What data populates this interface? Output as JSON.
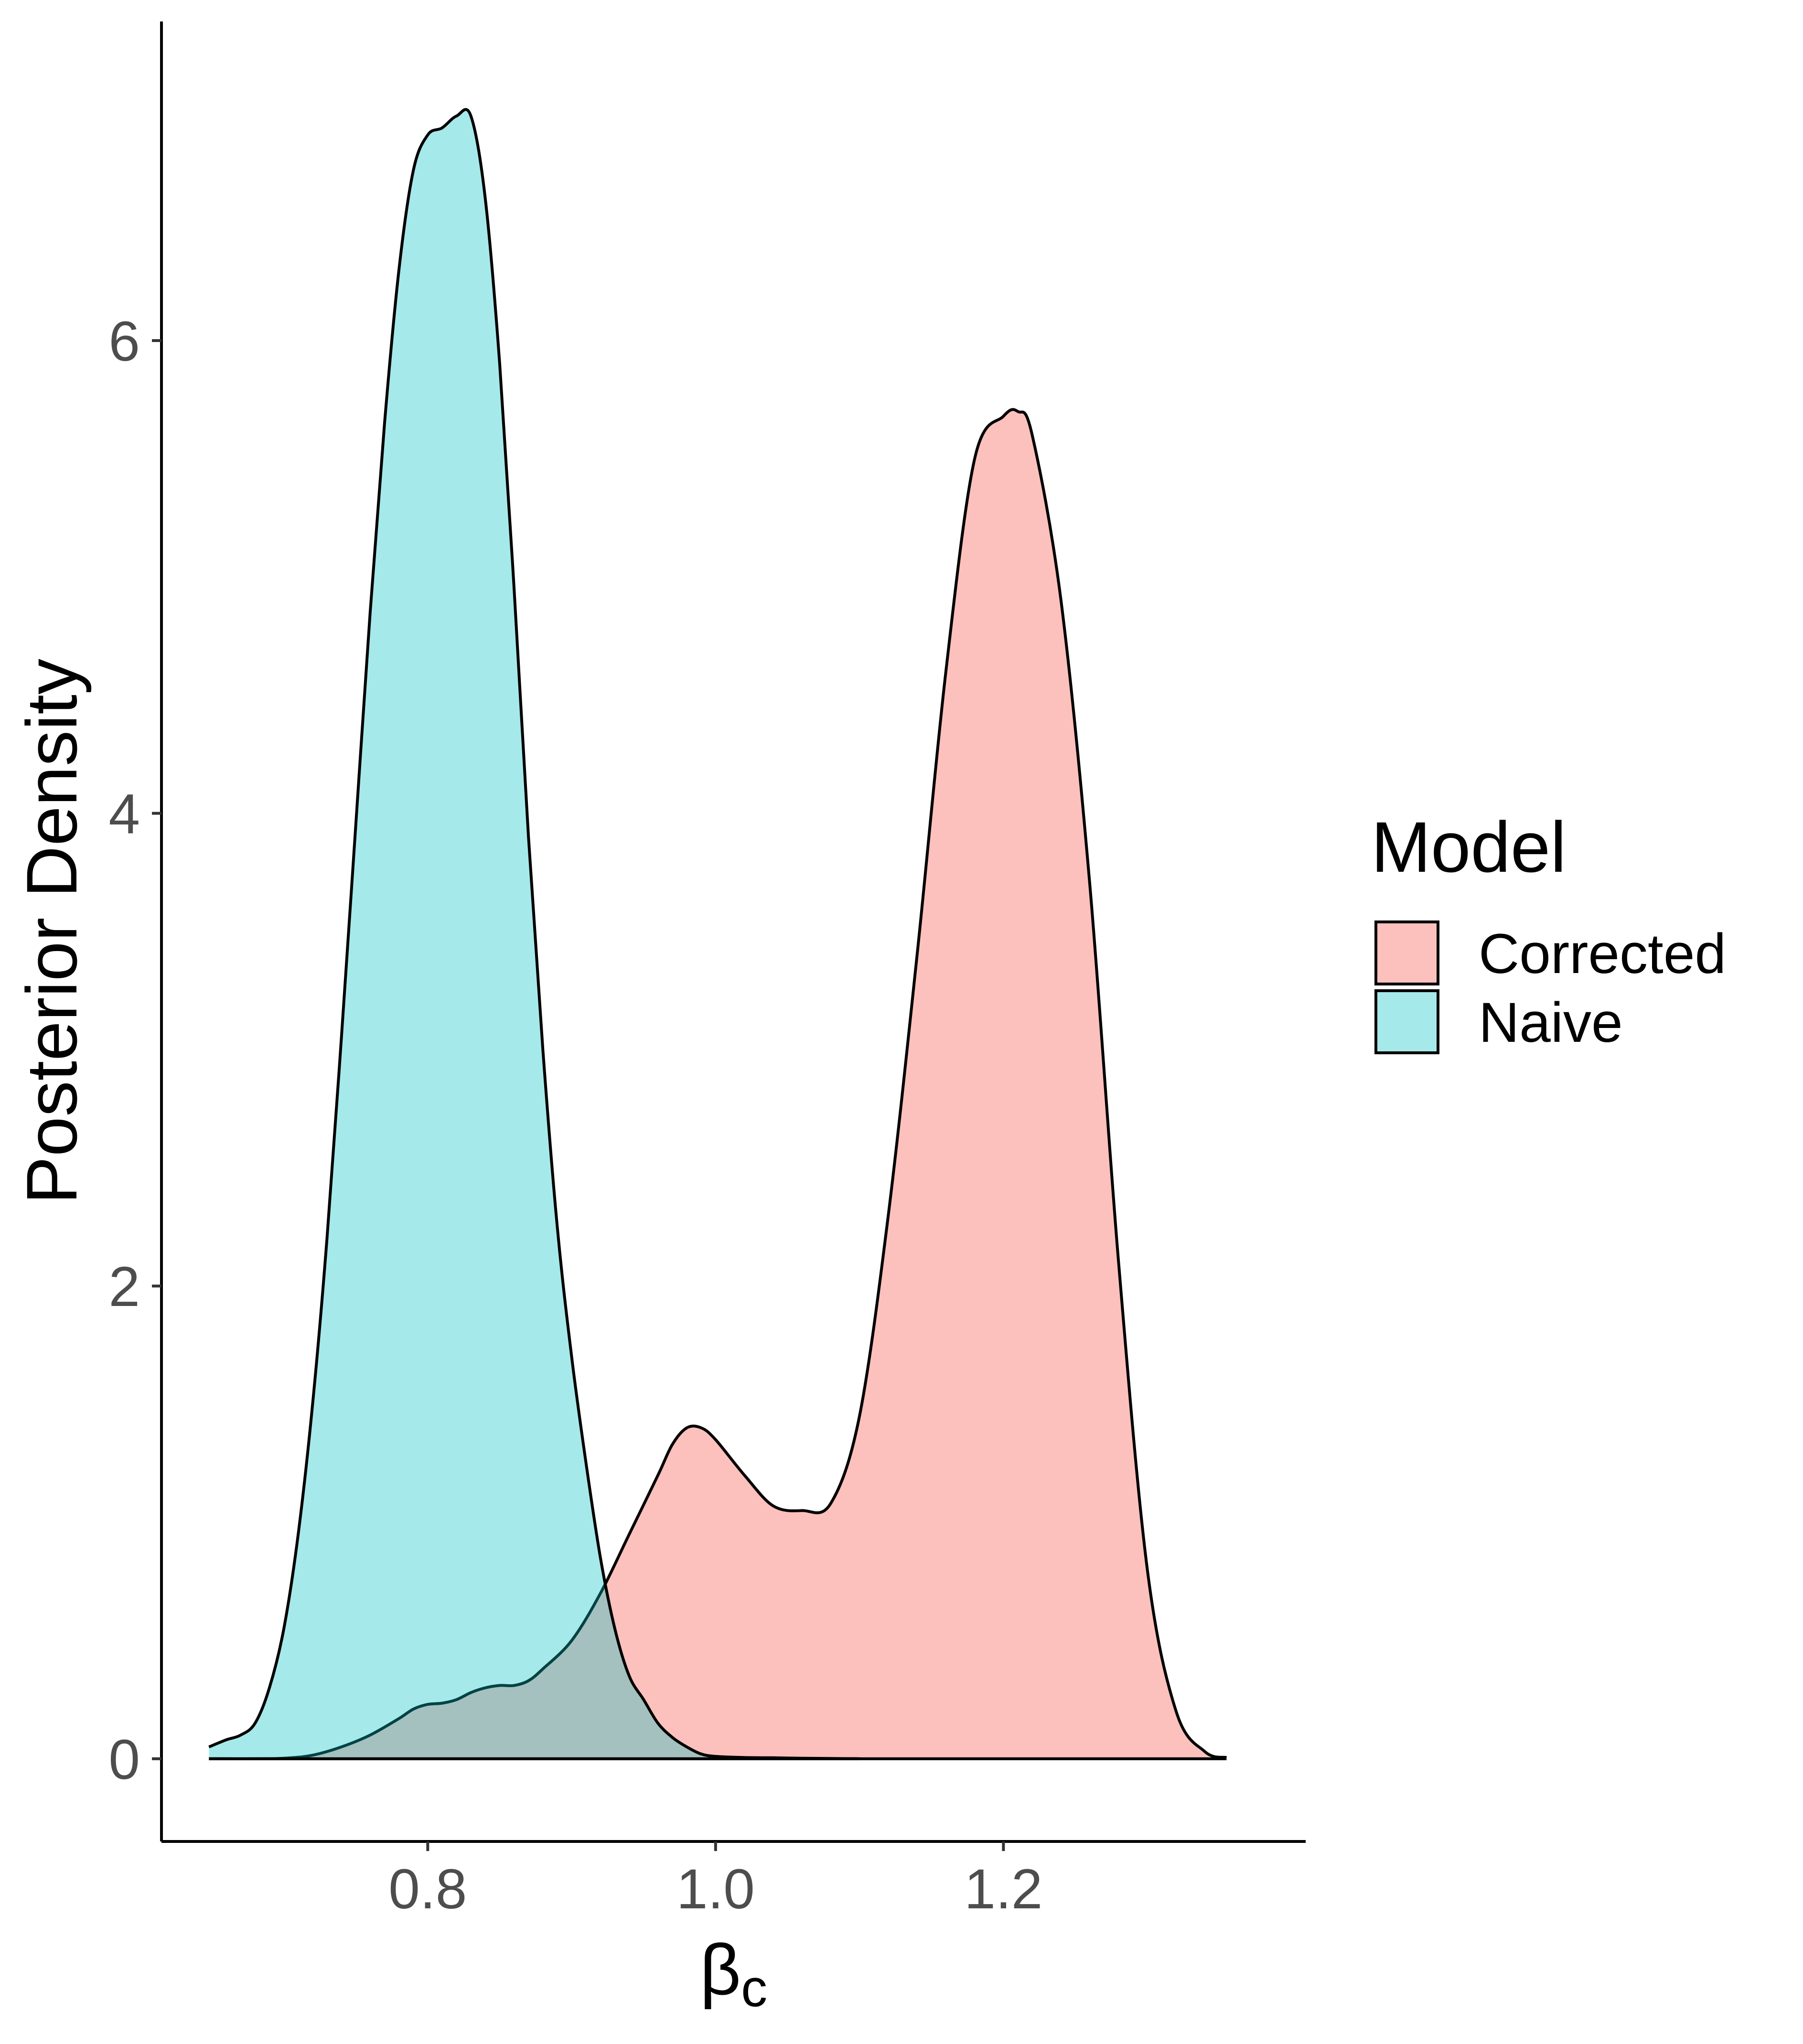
{
  "chart_data": {
    "type": "area",
    "title": "",
    "xlabel": "β",
    "xlabel_subscript": "c",
    "ylabel": "Posterior Density",
    "xlim": [
      0.615,
      1.41
    ],
    "ylim": [
      -0.35,
      7.35
    ],
    "grid": false,
    "x_ticks": [
      0.8,
      1.0,
      1.2
    ],
    "x_tick_labels": [
      "0.8",
      "1.0",
      "1.2"
    ],
    "y_ticks": [
      0,
      2,
      4,
      6
    ],
    "y_tick_labels": [
      "0",
      "2",
      "4",
      "6"
    ],
    "legend": {
      "title": "Model",
      "position": "right"
    },
    "series": [
      {
        "name": "Corrected",
        "color": "#F8766D",
        "fill_opacity": 0.45,
        "x": [
          0.648,
          0.66,
          0.68,
          0.7,
          0.72,
          0.74,
          0.76,
          0.78,
          0.79,
          0.8,
          0.81,
          0.82,
          0.83,
          0.84,
          0.85,
          0.86,
          0.87,
          0.88,
          0.9,
          0.92,
          0.94,
          0.96,
          0.97,
          0.98,
          0.99,
          1.0,
          1.02,
          1.04,
          1.06,
          1.08,
          1.1,
          1.12,
          1.14,
          1.16,
          1.18,
          1.2,
          1.21,
          1.22,
          1.24,
          1.26,
          1.28,
          1.3,
          1.32,
          1.34,
          1.355
        ],
        "y": [
          0.0,
          0.0,
          0.0,
          0.002,
          0.015,
          0.05,
          0.1,
          0.17,
          0.21,
          0.23,
          0.235,
          0.25,
          0.28,
          0.3,
          0.31,
          0.31,
          0.33,
          0.38,
          0.5,
          0.7,
          0.95,
          1.2,
          1.33,
          1.4,
          1.4,
          1.35,
          1.2,
          1.07,
          1.05,
          1.08,
          1.45,
          2.3,
          3.4,
          4.6,
          5.5,
          5.68,
          5.7,
          5.6,
          4.9,
          3.7,
          2.1,
          0.8,
          0.2,
          0.03,
          0.005
        ]
      },
      {
        "name": "Naive",
        "color": "#00BFC4",
        "fill_opacity": 0.35,
        "x": [
          0.648,
          0.66,
          0.67,
          0.68,
          0.69,
          0.7,
          0.71,
          0.72,
          0.73,
          0.74,
          0.75,
          0.76,
          0.77,
          0.78,
          0.79,
          0.8,
          0.81,
          0.82,
          0.83,
          0.84,
          0.85,
          0.86,
          0.87,
          0.88,
          0.89,
          0.9,
          0.91,
          0.92,
          0.93,
          0.94,
          0.95,
          0.96,
          0.97,
          0.98,
          0.99,
          1.0,
          1.02,
          1.04,
          1.06,
          1.08,
          1.1
        ],
        "y": [
          0.05,
          0.08,
          0.1,
          0.15,
          0.3,
          0.55,
          0.95,
          1.5,
          2.2,
          3.05,
          3.95,
          4.85,
          5.65,
          6.3,
          6.72,
          6.87,
          6.9,
          6.95,
          6.95,
          6.6,
          5.9,
          4.95,
          3.9,
          3.0,
          2.25,
          1.7,
          1.25,
          0.85,
          0.55,
          0.35,
          0.25,
          0.15,
          0.09,
          0.05,
          0.02,
          0.01,
          0.005,
          0.004,
          0.002,
          0.001,
          0.0
        ]
      }
    ]
  }
}
